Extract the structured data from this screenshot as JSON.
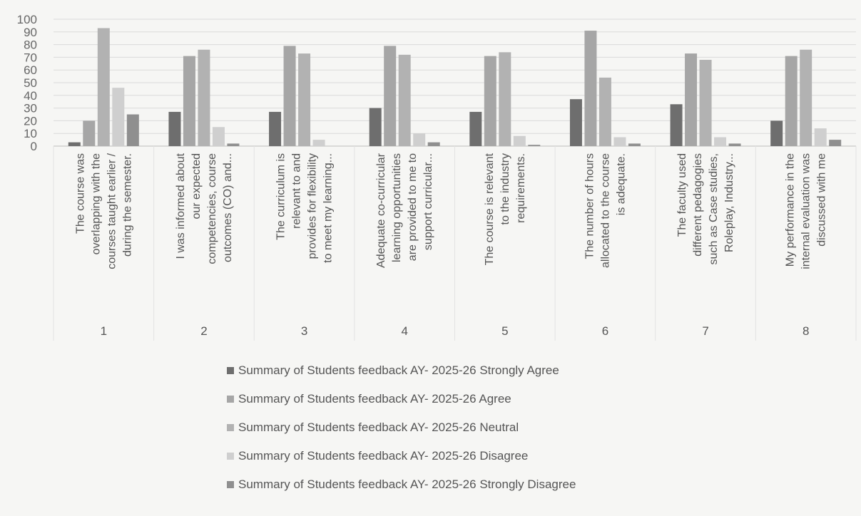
{
  "chart_data": {
    "type": "bar",
    "title": "",
    "xlabel": "",
    "ylabel": "",
    "ylim": [
      0,
      100
    ],
    "yticks": [
      0,
      10,
      20,
      30,
      40,
      50,
      60,
      70,
      80,
      90,
      100
    ],
    "grid": true,
    "legend_position": "bottom",
    "categories": [
      "1",
      "2",
      "3",
      "4",
      "5",
      "6",
      "7",
      "8"
    ],
    "category_labels": [
      [
        "The course was",
        "overlapping with the",
        "courses taught earlier /",
        "during the semester."
      ],
      [
        "I was informed about",
        "our expected",
        "competencies, course",
        "outcomes (CO) and..."
      ],
      [
        "The curriculum is",
        "relevant to and",
        "provides for flexibility",
        "to meet my learning..."
      ],
      [
        "Adequate co-curricular",
        "learning opportunities",
        "are provided to me to",
        "support curricular..."
      ],
      [
        "The course is relevant",
        "to the industry",
        "requirements."
      ],
      [
        "The number of hours",
        "allocated to the course",
        "is adequate."
      ],
      [
        "The faculty used",
        "different pedagogies",
        "such as Case studies,",
        "Roleplay, Industry..."
      ],
      [
        "My performance in the",
        "internal evaluation was",
        "discussed with me"
      ]
    ],
    "series": [
      {
        "name": "Summary of  Students feedback AY- 2025-26 Strongly Agree",
        "color": "#6e6e6e",
        "values": [
          3,
          27,
          27,
          30,
          27,
          37,
          33,
          20
        ]
      },
      {
        "name": "Summary of  Students feedback AY- 2025-26 Agree",
        "color": "#a6a6a6",
        "values": [
          20,
          71,
          79,
          79,
          71,
          91,
          73,
          71
        ]
      },
      {
        "name": "Summary of  Students feedback AY- 2025-26 Neutral",
        "color": "#b2b2b2",
        "values": [
          93,
          76,
          73,
          72,
          74,
          54,
          68,
          76
        ]
      },
      {
        "name": "Summary of  Students feedback AY- 2025-26 Disagree",
        "color": "#cfcfcf",
        "values": [
          46,
          15,
          5,
          10,
          8,
          7,
          7,
          14
        ]
      },
      {
        "name": "Summary of  Students feedback AY- 2025-26 Strongly Disagree",
        "color": "#8f8f8f",
        "values": [
          25,
          2,
          0,
          3,
          1,
          2,
          2,
          5
        ]
      }
    ]
  }
}
